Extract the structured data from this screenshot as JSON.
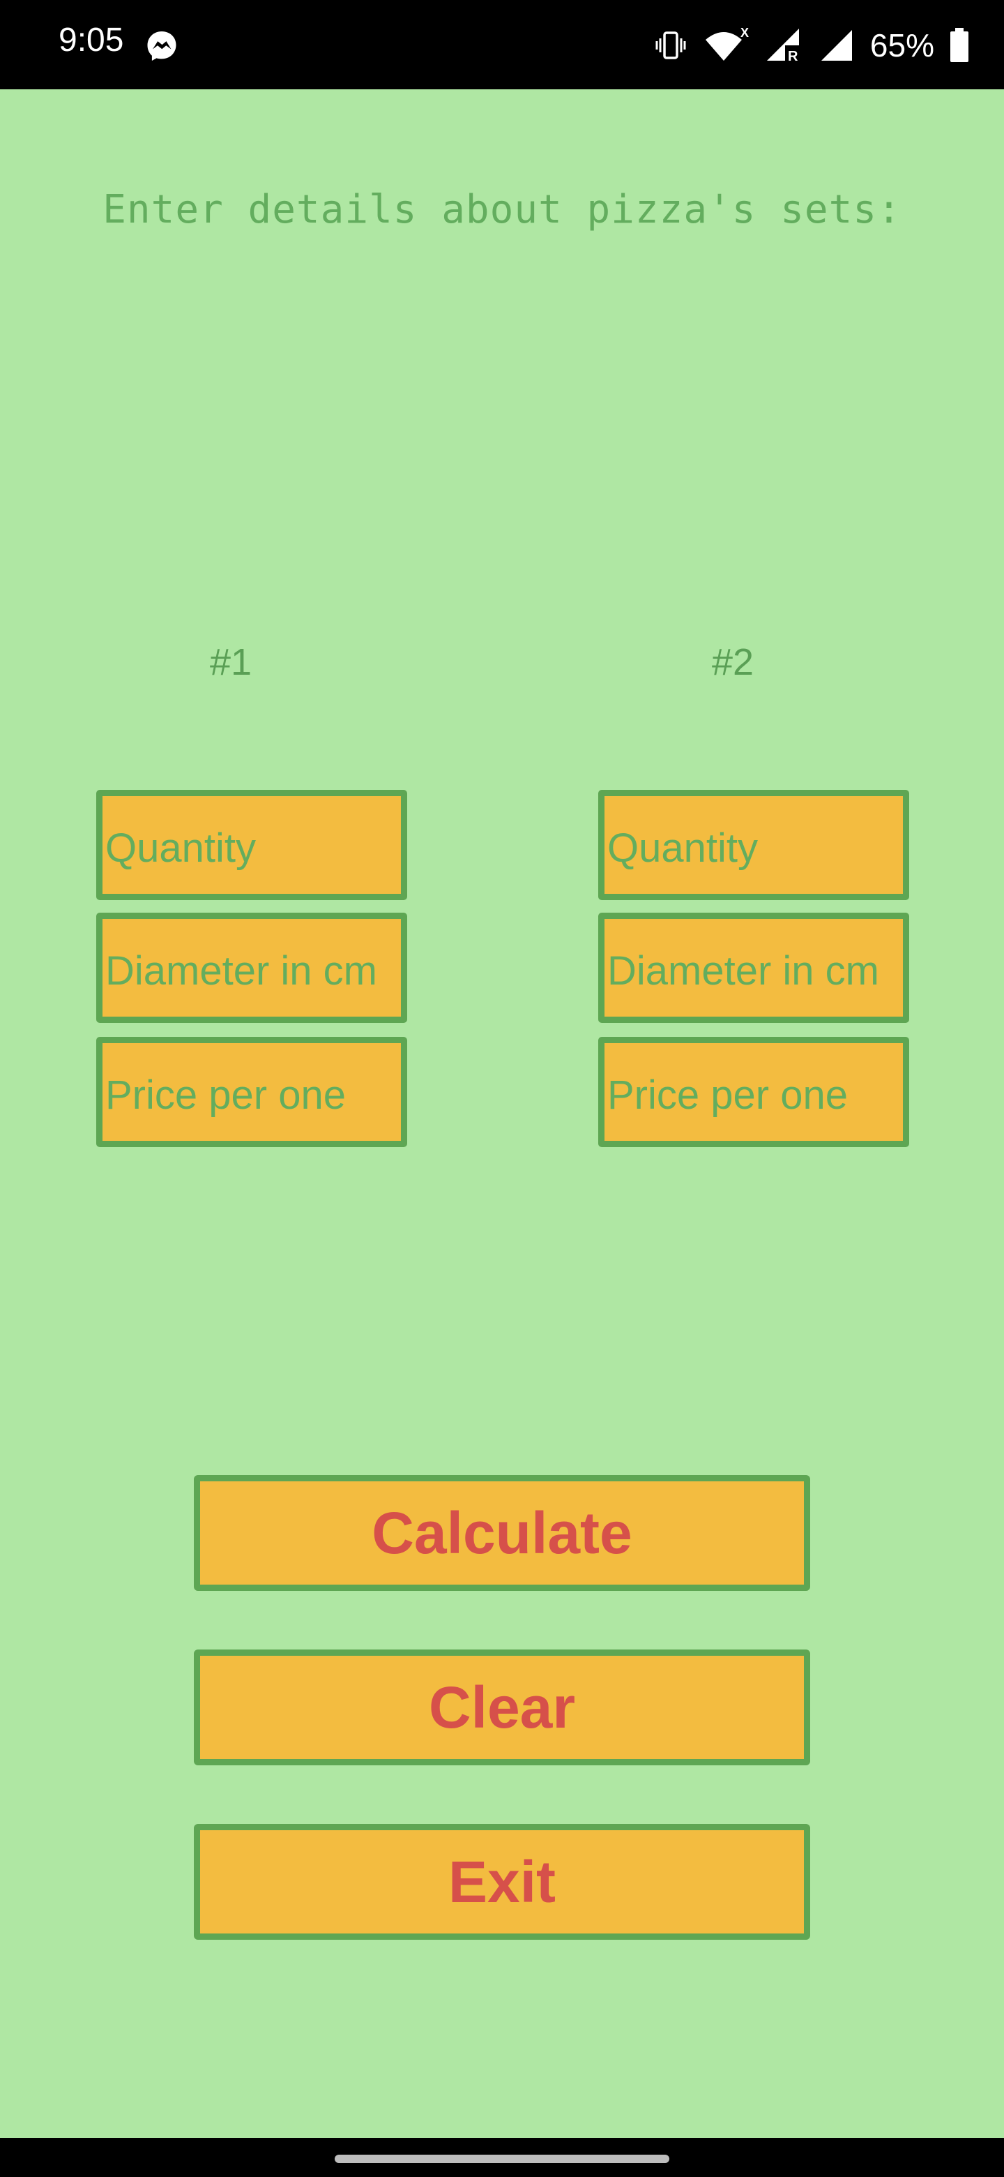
{
  "status_bar": {
    "time": "9:05",
    "battery_percent": "65%",
    "icons": [
      "messenger-icon",
      "vibrate-icon",
      "wifi-icon",
      "signal-r-icon",
      "signal-icon",
      "battery-icon"
    ],
    "wifi_badge": "X",
    "roaming_badge": "R"
  },
  "header": {
    "text": "Enter details about pizza's sets:"
  },
  "sets": [
    {
      "label": "#1",
      "quantity_placeholder": "Quantity",
      "diameter_placeholder": "Diameter in cm",
      "price_placeholder": "Price per one"
    },
    {
      "label": "#2",
      "quantity_placeholder": "Quantity",
      "diameter_placeholder": "Diameter in cm",
      "price_placeholder": "Price per one"
    }
  ],
  "buttons": {
    "calculate": "Calculate",
    "clear": "Clear",
    "exit": "Exit"
  },
  "colors": {
    "background": "#afe7a3",
    "field_fill": "#f3bc40",
    "border_green": "#5ea653",
    "text_green": "#63ad5e",
    "button_text": "#d6504a"
  }
}
